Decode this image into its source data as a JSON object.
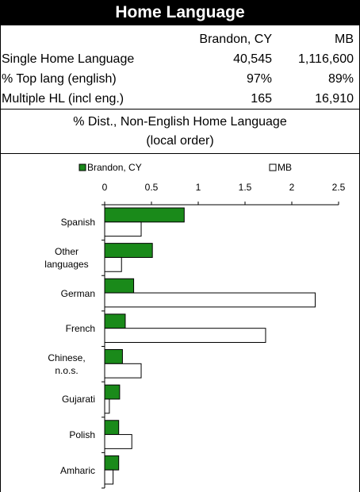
{
  "header": {
    "title": "Home Language"
  },
  "table": {
    "columns": [
      "Brandon, CY",
      "MB"
    ],
    "rows": [
      [
        "Single Home Language",
        "40,545",
        "1,116,600"
      ],
      [
        "% Top lang (english)",
        "97%",
        "89%"
      ],
      [
        "Multiple HL (incl eng.)",
        "165",
        "16,910"
      ]
    ]
  },
  "subtitle": [
    "% Dist., Non-English Home Language",
    "(local order)"
  ],
  "chart_data": {
    "type": "hbar",
    "categories": [
      "Spanish",
      "Other languages",
      "German",
      "French",
      "Chinese, n.o.s.",
      "Gujarati",
      "Polish",
      "Amharic"
    ],
    "series": [
      {
        "name": "Brandon, CY",
        "color": "#1a8a1a",
        "values": [
          0.85,
          0.51,
          0.31,
          0.22,
          0.19,
          0.16,
          0.15,
          0.15
        ]
      },
      {
        "name": "MB",
        "color": "#ffffff",
        "values": [
          0.39,
          0.18,
          2.25,
          1.72,
          0.39,
          0.05,
          0.29,
          0.09
        ]
      }
    ],
    "xlim": [
      0,
      2.5
    ],
    "xticks": [
      0,
      0.5,
      1,
      1.5,
      2,
      2.5
    ],
    "legend": "top"
  }
}
